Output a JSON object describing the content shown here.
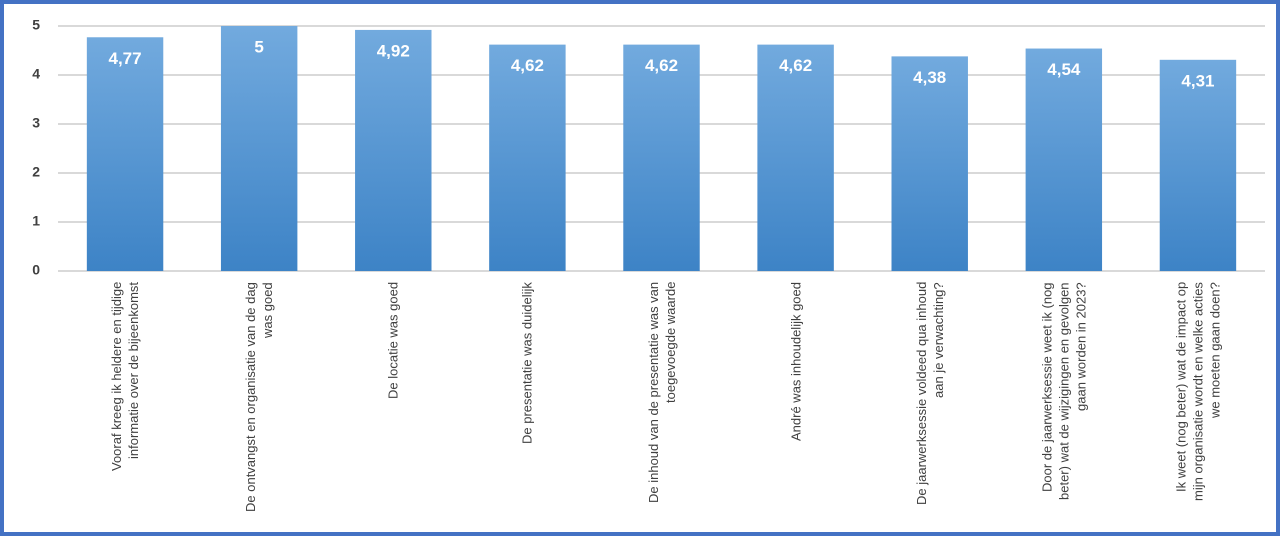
{
  "chart_data": {
    "type": "bar",
    "categories": [
      "Vooraf kreeg ik heldere en tijdige informatie over de bijeenkomst",
      "De ontvangst en organisatie van de dag was goed",
      "De locatie was goed",
      "De presentatie was duidelijk",
      "De inhoud van de presentatie was van toegevoegde waarde",
      "André was inhoudelijk goed",
      "De jaarwerksessie voldeed qua inhoud aan je verwachting?",
      "Door de jaarwerksessie weet ik (nog beter) wat de wijzigingen en gevolgen gaan worden in 2023?",
      "Ik weet (nog beter) wat de impact op mijn organisatie wordt en welke acties we moeten gaan doen?"
    ],
    "values": [
      4.77,
      5,
      4.92,
      4.62,
      4.62,
      4.62,
      4.38,
      4.54,
      4.31
    ],
    "value_labels": [
      "4,77",
      "5",
      "4,92",
      "4,62",
      "4,62",
      "4,62",
      "4,38",
      "4,54",
      "4,31"
    ],
    "color": "#5b9bd5",
    "ylim": [
      0,
      5
    ],
    "yticks": [
      0,
      1,
      2,
      3,
      4,
      5
    ],
    "grid": true
  }
}
